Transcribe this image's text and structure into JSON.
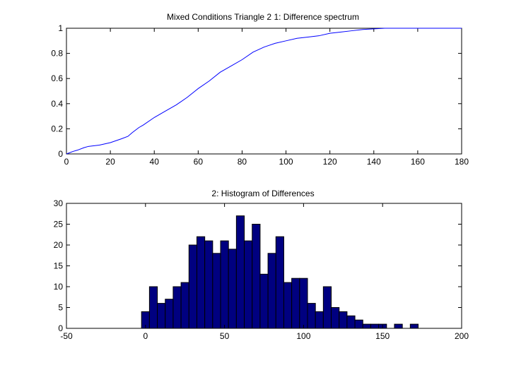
{
  "chart_data": [
    {
      "type": "line",
      "title": "Mixed Conditions Triangle 2  1: Difference spectrum",
      "xlabel": "",
      "ylabel": "",
      "xlim": [
        0,
        180
      ],
      "ylim": [
        0,
        1
      ],
      "xticks": [
        0,
        20,
        40,
        60,
        80,
        100,
        120,
        140,
        160,
        180
      ],
      "xtick_labels": [
        "0",
        "20",
        "40",
        "60",
        "80",
        "100",
        "120",
        "140",
        "160",
        "180"
      ],
      "yticks": [
        0,
        0.2,
        0.4,
        0.6,
        0.8,
        1
      ],
      "ytick_labels": [
        "0",
        "0.2",
        "0.4",
        "0.6",
        "0.8",
        "1"
      ],
      "grid": false,
      "line_color": "#0000ff",
      "series": [
        {
          "x": [
            0,
            3,
            5,
            8,
            10,
            15,
            20,
            25,
            28,
            30,
            33,
            35,
            40,
            45,
            50,
            55,
            60,
            65,
            70,
            75,
            80,
            85,
            90,
            95,
            100,
            105,
            110,
            115,
            120,
            125,
            130,
            135,
            140,
            145,
            150,
            160,
            170,
            180
          ],
          "y": [
            0.0,
            0.02,
            0.03,
            0.05,
            0.06,
            0.07,
            0.09,
            0.12,
            0.14,
            0.17,
            0.21,
            0.23,
            0.29,
            0.34,
            0.39,
            0.45,
            0.52,
            0.58,
            0.65,
            0.7,
            0.75,
            0.81,
            0.85,
            0.88,
            0.9,
            0.92,
            0.93,
            0.94,
            0.96,
            0.97,
            0.98,
            0.99,
            0.995,
            1.0,
            1.0,
            1.0,
            1.0,
            1.0
          ]
        }
      ]
    },
    {
      "type": "bar",
      "title": "2: Histogram of Differences",
      "xlabel": "",
      "ylabel": "",
      "xlim": [
        -50,
        200
      ],
      "ylim": [
        0,
        30
      ],
      "xticks": [
        -50,
        0,
        50,
        100,
        150,
        200
      ],
      "xtick_labels": [
        "-50",
        "0",
        "50",
        "100",
        "150",
        "200"
      ],
      "yticks": [
        0,
        5,
        10,
        15,
        20,
        25,
        30
      ],
      "ytick_labels": [
        "0",
        "5",
        "10",
        "15",
        "20",
        "25",
        "30"
      ],
      "grid": false,
      "bar_fill": "#000080",
      "bar_edge": "#000000",
      "bin_width": 5,
      "bin_centers": [
        0,
        5,
        10,
        15,
        20,
        25,
        30,
        35,
        40,
        45,
        50,
        55,
        60,
        65,
        70,
        75,
        80,
        85,
        90,
        95,
        100,
        105,
        110,
        115,
        120,
        125,
        130,
        135,
        140,
        145,
        150,
        155,
        160,
        165,
        170
      ],
      "counts": [
        4,
        10,
        6,
        7,
        10,
        11,
        20,
        22,
        21,
        18,
        21,
        19,
        27,
        21,
        25,
        13,
        18,
        22,
        11,
        12,
        12,
        6,
        4,
        10,
        5,
        4,
        3,
        2,
        1,
        1,
        1,
        0,
        1,
        0,
        1
      ]
    }
  ]
}
